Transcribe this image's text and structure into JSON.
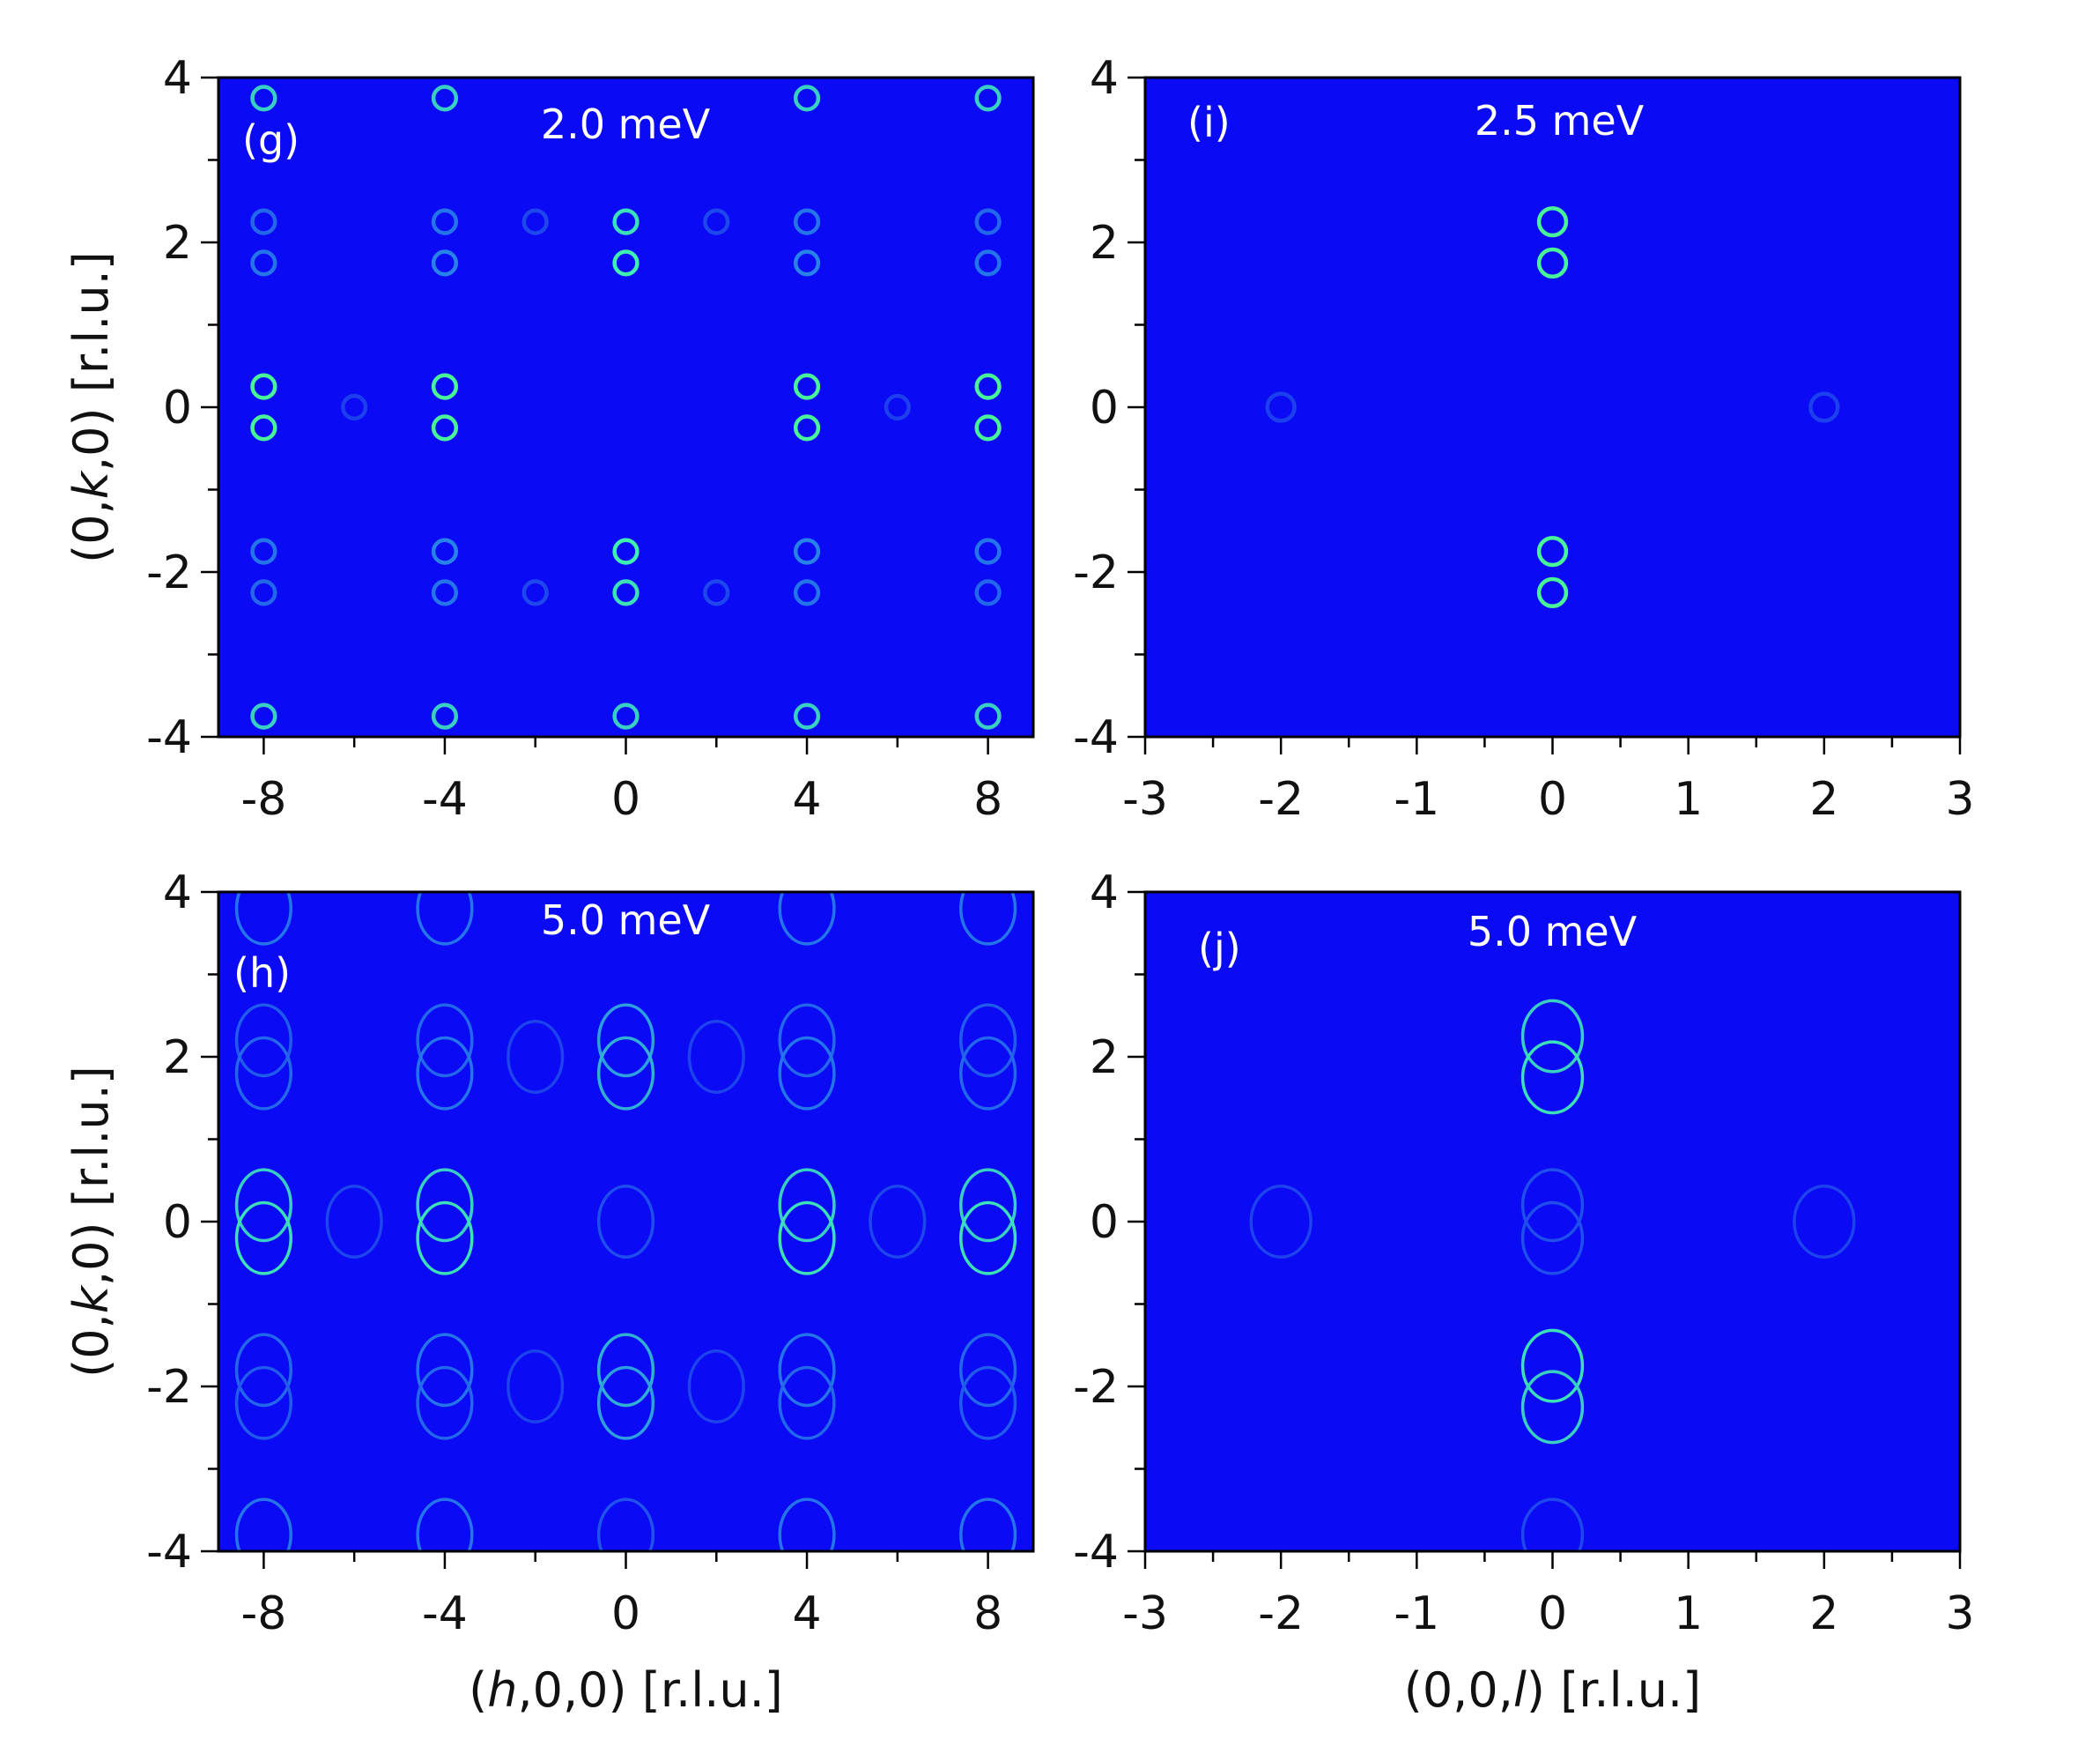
{
  "chart_data": [
    {
      "panel": "(g)",
      "type": "heatmap",
      "energy_label": "2.0 meV",
      "xlabel": "",
      "ylabel_parts": [
        "(0,",
        "k",
        ",0) [r.l.u.]"
      ],
      "xlim": [
        -9,
        9
      ],
      "ylim": [
        -4,
        4
      ],
      "xticks": [
        -8,
        -4,
        0,
        4,
        8
      ],
      "yticks": [
        -4,
        -2,
        0,
        2,
        4
      ],
      "ring_radius": 0.25,
      "rings": [
        {
          "x": -8,
          "y": 3.75,
          "i": 0.55
        },
        {
          "x": -4,
          "y": 3.75,
          "i": 0.55
        },
        {
          "x": 4,
          "y": 3.75,
          "i": 0.55
        },
        {
          "x": 8,
          "y": 3.75,
          "i": 0.55
        },
        {
          "x": -8,
          "y": 2.25,
          "i": 0.2
        },
        {
          "x": -4,
          "y": 2.25,
          "i": 0.25
        },
        {
          "x": 0,
          "y": 2.25,
          "i": 0.6
        },
        {
          "x": 4,
          "y": 2.25,
          "i": 0.25
        },
        {
          "x": 8,
          "y": 2.25,
          "i": 0.2
        },
        {
          "x": -8,
          "y": 1.75,
          "i": 0.25
        },
        {
          "x": -4,
          "y": 1.75,
          "i": 0.3
        },
        {
          "x": 0,
          "y": 1.75,
          "i": 0.65
        },
        {
          "x": 4,
          "y": 1.75,
          "i": 0.3
        },
        {
          "x": 8,
          "y": 1.75,
          "i": 0.25
        },
        {
          "x": -2,
          "y": 2.25,
          "i": 0.08
        },
        {
          "x": 2,
          "y": 2.25,
          "i": 0.08
        },
        {
          "x": -8,
          "y": 0.25,
          "i": 0.75
        },
        {
          "x": -4,
          "y": 0.25,
          "i": 0.75
        },
        {
          "x": 4,
          "y": 0.25,
          "i": 0.75
        },
        {
          "x": 8,
          "y": 0.25,
          "i": 0.75
        },
        {
          "x": -8,
          "y": -0.25,
          "i": 0.75
        },
        {
          "x": -4,
          "y": -0.25,
          "i": 0.75
        },
        {
          "x": 4,
          "y": -0.25,
          "i": 0.75
        },
        {
          "x": 8,
          "y": -0.25,
          "i": 0.75
        },
        {
          "x": -6,
          "y": 0.0,
          "i": 0.05
        },
        {
          "x": 6,
          "y": 0.0,
          "i": 0.05
        },
        {
          "x": -8,
          "y": -1.75,
          "i": 0.25
        },
        {
          "x": -4,
          "y": -1.75,
          "i": 0.3
        },
        {
          "x": 0,
          "y": -1.75,
          "i": 0.65
        },
        {
          "x": 4,
          "y": -1.75,
          "i": 0.3
        },
        {
          "x": 8,
          "y": -1.75,
          "i": 0.25
        },
        {
          "x": -8,
          "y": -2.25,
          "i": 0.2
        },
        {
          "x": -4,
          "y": -2.25,
          "i": 0.25
        },
        {
          "x": 0,
          "y": -2.25,
          "i": 0.6
        },
        {
          "x": 4,
          "y": -2.25,
          "i": 0.25
        },
        {
          "x": 8,
          "y": -2.25,
          "i": 0.2
        },
        {
          "x": -2,
          "y": -2.25,
          "i": 0.08
        },
        {
          "x": 2,
          "y": -2.25,
          "i": 0.08
        },
        {
          "x": -8,
          "y": -3.75,
          "i": 0.55
        },
        {
          "x": -4,
          "y": -3.75,
          "i": 0.55
        },
        {
          "x": 0,
          "y": -3.75,
          "i": 0.55
        },
        {
          "x": 4,
          "y": -3.75,
          "i": 0.55
        },
        {
          "x": 8,
          "y": -3.75,
          "i": 0.55
        }
      ]
    },
    {
      "panel": "(i)",
      "type": "heatmap",
      "energy_label": "2.5 meV",
      "xlabel": "",
      "ylabel_parts": [],
      "xlim": [
        -3,
        3
      ],
      "ylim": [
        -4,
        4
      ],
      "xticks": [
        -3,
        -2,
        -1,
        0,
        1,
        2,
        3
      ],
      "yticks": [
        -4,
        -2,
        0,
        2,
        4
      ],
      "ring_radius": 0.1,
      "rings": [
        {
          "x": 0,
          "y": 2.25,
          "i": 0.75
        },
        {
          "x": 0,
          "y": 1.75,
          "i": 0.75
        },
        {
          "x": 0,
          "y": -1.75,
          "i": 0.75
        },
        {
          "x": 0,
          "y": -2.25,
          "i": 0.75
        },
        {
          "x": -2,
          "y": 0.0,
          "i": 0.05
        },
        {
          "x": 2,
          "y": 0.0,
          "i": 0.05
        }
      ]
    },
    {
      "panel": "(h)",
      "type": "heatmap",
      "energy_label": "5.0 meV",
      "xlabel_parts": [
        "(",
        "h",
        ",0,0) [r.l.u.]"
      ],
      "ylabel_parts": [
        "(0,",
        "k",
        ",0) [r.l.u.]"
      ],
      "xlim": [
        -9,
        9
      ],
      "ylim": [
        -4,
        4
      ],
      "xticks": [
        -8,
        -4,
        0,
        4,
        8
      ],
      "yticks": [
        -4,
        -2,
        0,
        2,
        4
      ],
      "ring_radius": 0.6,
      "ring_radius_y": 0.43,
      "rings": [
        {
          "x": -8,
          "y": 3.8,
          "i": 0.25
        },
        {
          "x": -4,
          "y": 3.8,
          "i": 0.25
        },
        {
          "x": 4,
          "y": 3.8,
          "i": 0.25
        },
        {
          "x": 8,
          "y": 3.8,
          "i": 0.25
        },
        {
          "x": -8,
          "y": 2.2,
          "i": 0.15
        },
        {
          "x": -4,
          "y": 2.2,
          "i": 0.2
        },
        {
          "x": 0,
          "y": 2.2,
          "i": 0.4
        },
        {
          "x": 4,
          "y": 2.2,
          "i": 0.2
        },
        {
          "x": 8,
          "y": 2.2,
          "i": 0.15
        },
        {
          "x": -8,
          "y": 1.8,
          "i": 0.2
        },
        {
          "x": -4,
          "y": 1.8,
          "i": 0.25
        },
        {
          "x": 0,
          "y": 1.8,
          "i": 0.45
        },
        {
          "x": 4,
          "y": 1.8,
          "i": 0.25
        },
        {
          "x": 8,
          "y": 1.8,
          "i": 0.2
        },
        {
          "x": -2,
          "y": 2.0,
          "i": 0.06
        },
        {
          "x": 2,
          "y": 2.0,
          "i": 0.06
        },
        {
          "x": -8,
          "y": 0.2,
          "i": 0.55
        },
        {
          "x": -4,
          "y": 0.2,
          "i": 0.55
        },
        {
          "x": 4,
          "y": 0.2,
          "i": 0.55
        },
        {
          "x": 8,
          "y": 0.2,
          "i": 0.55
        },
        {
          "x": -8,
          "y": -0.2,
          "i": 0.6
        },
        {
          "x": -4,
          "y": -0.2,
          "i": 0.6
        },
        {
          "x": 4,
          "y": -0.2,
          "i": 0.6
        },
        {
          "x": 8,
          "y": -0.2,
          "i": 0.6
        },
        {
          "x": -6,
          "y": 0.0,
          "i": 0.07
        },
        {
          "x": 0,
          "y": 0.0,
          "i": 0.1
        },
        {
          "x": 6,
          "y": 0.0,
          "i": 0.07
        },
        {
          "x": -8,
          "y": -1.8,
          "i": 0.2
        },
        {
          "x": -4,
          "y": -1.8,
          "i": 0.25
        },
        {
          "x": 0,
          "y": -1.8,
          "i": 0.45
        },
        {
          "x": 4,
          "y": -1.8,
          "i": 0.25
        },
        {
          "x": 8,
          "y": -1.8,
          "i": 0.2
        },
        {
          "x": -8,
          "y": -2.2,
          "i": 0.15
        },
        {
          "x": -4,
          "y": -2.2,
          "i": 0.2
        },
        {
          "x": 0,
          "y": -2.2,
          "i": 0.4
        },
        {
          "x": 4,
          "y": -2.2,
          "i": 0.2
        },
        {
          "x": 8,
          "y": -2.2,
          "i": 0.15
        },
        {
          "x": -2,
          "y": -2.0,
          "i": 0.06
        },
        {
          "x": 2,
          "y": -2.0,
          "i": 0.06
        },
        {
          "x": -8,
          "y": -3.8,
          "i": 0.25
        },
        {
          "x": -4,
          "y": -3.8,
          "i": 0.25
        },
        {
          "x": 0,
          "y": -3.8,
          "i": 0.12
        },
        {
          "x": 4,
          "y": -3.8,
          "i": 0.25
        },
        {
          "x": 8,
          "y": -3.8,
          "i": 0.25
        }
      ]
    },
    {
      "panel": "(j)",
      "type": "heatmap",
      "energy_label": "5.0 meV",
      "xlabel_parts": [
        "(0,0,",
        "l",
        ") [r.l.u.]"
      ],
      "ylabel_parts": [],
      "xlim": [
        -3,
        3
      ],
      "ylim": [
        -4,
        4
      ],
      "xticks": [
        -3,
        -2,
        -1,
        0,
        1,
        2,
        3
      ],
      "yticks": [
        -4,
        -2,
        0,
        2,
        4
      ],
      "ring_radius": 0.22,
      "ring_radius_y": 0.43,
      "rings": [
        {
          "x": 0,
          "y": 2.25,
          "i": 0.55
        },
        {
          "x": 0,
          "y": 1.75,
          "i": 0.6
        },
        {
          "x": 0,
          "y": -1.75,
          "i": 0.6
        },
        {
          "x": 0,
          "y": -2.25,
          "i": 0.55
        },
        {
          "x": 0,
          "y": 0.2,
          "i": 0.1
        },
        {
          "x": 0,
          "y": -0.2,
          "i": 0.1
        },
        {
          "x": -2,
          "y": 0.0,
          "i": 0.06
        },
        {
          "x": 2,
          "y": 0.0,
          "i": 0.06
        },
        {
          "x": 0,
          "y": -3.8,
          "i": 0.08
        }
      ]
    }
  ],
  "colors": {
    "background": "#0a0af5",
    "low": "#1a33ee",
    "mid": "#2a90e8",
    "high": "#40f0b0",
    "top": "#60ff60"
  }
}
